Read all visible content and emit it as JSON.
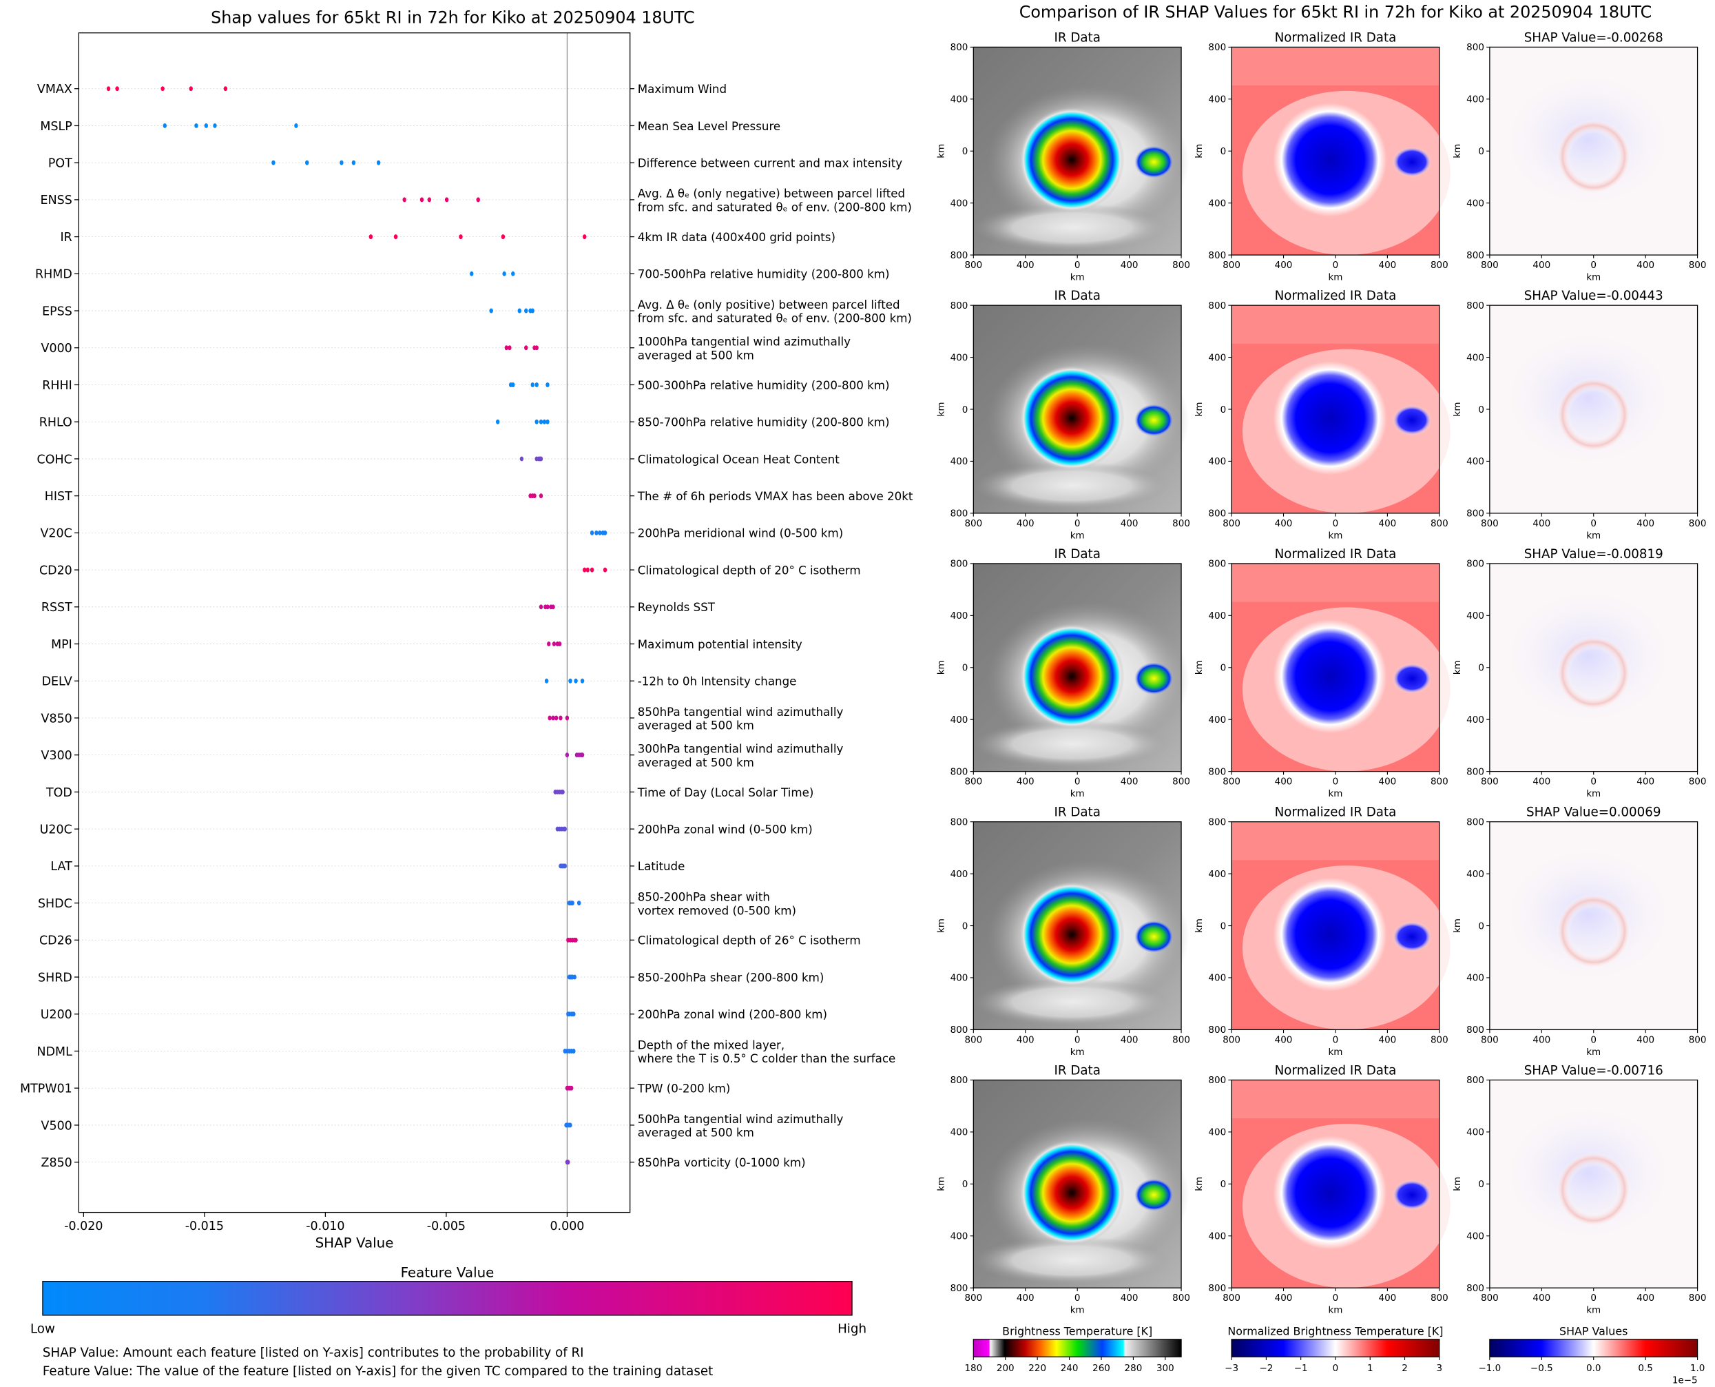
{
  "left": {
    "title": "Shap values for 65kt RI in 72h for Kiko at 20250904 18UTC",
    "chart_data": {
      "type": "scatter",
      "title": "Shap values for 65kt RI in 72h for Kiko at 20250904 18UTC",
      "xlabel": "SHAP Value",
      "xlim": [
        -0.0202,
        0.0026
      ],
      "xticks": [
        "-0.020",
        "-0.015",
        "-0.010",
        "-0.005",
        "0.000"
      ],
      "xtick_values": [
        -0.02,
        -0.015,
        -0.01,
        -0.005,
        0.0
      ],
      "grid": "dotted horizontal per feature",
      "features": [
        {
          "code": "VMAX",
          "desc": [
            "Maximum Wind"
          ],
          "fv": 1.0,
          "values": [
            -0.01897,
            -0.01861,
            -0.01673,
            -0.01556,
            -0.01413
          ]
        },
        {
          "code": "MSLP",
          "desc": [
            "Mean Sea Level Pressure"
          ],
          "fv": 0.0,
          "values": [
            -0.01664,
            -0.01534,
            -0.01493,
            -0.01457,
            -0.01121
          ]
        },
        {
          "code": "POT",
          "desc": [
            "Difference between current and max intensity"
          ],
          "fv": 0.03,
          "values": [
            -0.01215,
            -0.01076,
            -0.00933,
            -0.00883,
            -0.0078
          ]
        },
        {
          "code": "ENSS",
          "desc": [
            "Avg. Δ θₑ (only negative) between parcel lifted",
            "from sfc. and saturated θₑ of env. (200-800 km)"
          ],
          "fv": 0.88,
          "values": [
            -0.00673,
            -0.00601,
            -0.0057,
            -0.00498,
            -0.00368
          ]
        },
        {
          "code": "IR",
          "desc": [
            "4km IR data (400x400 grid points)"
          ],
          "fv": 0.97,
          "values": [
            -0.00812,
            -0.00709,
            -0.0044,
            -0.00265,
            0.00072
          ]
        },
        {
          "code": "RHMD",
          "desc": [
            "700-500hPa relative humidity (200-800 km)"
          ],
          "fv": 0.03,
          "values": [
            -0.00395,
            -0.0026,
            -0.00224
          ]
        },
        {
          "code": "EPSS",
          "desc": [
            "Avg. Δ θₑ (only positive) between parcel lifted",
            "from sfc. and saturated θₑ of env. (200-800 km)"
          ],
          "fv": 0.03,
          "values": [
            -0.00314,
            -0.00197,
            -0.0017,
            -0.00152,
            -0.00143
          ]
        },
        {
          "code": "V000",
          "desc": [
            "1000hPa tangential wind azimuthally",
            "averaged at 500 km"
          ],
          "fv": 0.82,
          "values": [
            -0.00251,
            -0.00238,
            -0.0017,
            -0.00135,
            -0.00126
          ]
        },
        {
          "code": "RHHI",
          "desc": [
            "500-300hPa relative humidity (200-800 km)"
          ],
          "fv": 0.03,
          "values": [
            -0.00233,
            -0.00224,
            -0.00143,
            -0.00126,
            -0.00081
          ]
        },
        {
          "code": "RHLO",
          "desc": [
            "850-700hPa relative humidity (200-800 km)"
          ],
          "fv": 0.03,
          "values": [
            -0.00287,
            -0.00126,
            -0.00108,
            -0.00094,
            -0.00081
          ]
        },
        {
          "code": "COHC",
          "desc": [
            "Climatological Ocean Heat Content"
          ],
          "fv": 0.42,
          "values": [
            -0.00188,
            -0.00126,
            -0.00117,
            -0.00112,
            -0.00108
          ]
        },
        {
          "code": "HIST",
          "desc": [
            "The # of 6h periods VMAX has been above 20kt"
          ],
          "fv": 0.78,
          "values": [
            -0.00152,
            -0.00143,
            -0.00135,
            -0.00108
          ]
        },
        {
          "code": "V20C",
          "desc": [
            "200hPa meridional wind (0-500 km)"
          ],
          "fv": 0.12,
          "values": [
            0.00103,
            0.00121,
            0.00135,
            0.00148,
            0.00157
          ]
        },
        {
          "code": "CD20",
          "desc": [
            "Climatological depth of 20° C isotherm"
          ],
          "fv": 0.95,
          "values": [
            0.00072,
            0.00085,
            0.00103,
            0.00157
          ]
        },
        {
          "code": "RSST",
          "desc": [
            "Reynolds SST"
          ],
          "fv": 0.7,
          "values": [
            -0.00108,
            -0.0009,
            -0.00081,
            -0.00067,
            -0.00058
          ]
        },
        {
          "code": "MPI",
          "desc": [
            "Maximum potential intensity"
          ],
          "fv": 0.72,
          "values": [
            -0.00076,
            -0.00054,
            -0.0004,
            -0.00031
          ]
        },
        {
          "code": "DELV",
          "desc": [
            "-12h to 0h Intensity change"
          ],
          "fv": 0.03,
          "values": [
            -0.00085,
            0.00013,
            0.00036,
            0.00063
          ]
        },
        {
          "code": "V850",
          "desc": [
            "850hPa tangential wind azimuthally",
            "averaged at 500 km"
          ],
          "fv": 0.72,
          "values": [
            -0.00072,
            -0.00058,
            -0.00045,
            -0.00027,
            0.0
          ]
        },
        {
          "code": "V300",
          "desc": [
            "300hPa tangential wind azimuthally",
            "averaged at 500 km"
          ],
          "fv": 0.6,
          "values": [
            0.0,
            0.0004,
            0.00049,
            0.00058,
            0.00063
          ]
        },
        {
          "code": "TOD",
          "desc": [
            "Time of Day (Local Solar Time)"
          ],
          "fv": 0.42,
          "values": [
            -0.00049,
            -0.0004,
            -0.00031,
            -0.00022,
            -0.00018
          ]
        },
        {
          "code": "U20C",
          "desc": [
            "200hPa zonal wind (0-500 km)"
          ],
          "fv": 0.38,
          "values": [
            -0.0004,
            -0.00031,
            -0.00022,
            -0.00013,
            -9e-05
          ]
        },
        {
          "code": "LAT",
          "desc": [
            "Latitude"
          ],
          "fv": 0.3,
          "values": [
            -0.00027,
            -0.00022,
            -0.00018,
            -0.00013,
            -9e-05
          ]
        },
        {
          "code": "SHDC",
          "desc": [
            "850-200hPa shear with",
            "vortex removed (0-500 km)"
          ],
          "fv": 0.2,
          "values": [
            9e-05,
            0.00013,
            0.00018,
            0.00022,
            0.00049
          ]
        },
        {
          "code": "CD26",
          "desc": [
            "Climatological depth of 26° C isotherm"
          ],
          "fv": 0.78,
          "values": [
            4e-05,
            0.00013,
            0.00022,
            0.00031,
            0.00036
          ]
        },
        {
          "code": "SHRD",
          "desc": [
            "850-200hPa shear (200-800 km)"
          ],
          "fv": 0.2,
          "values": [
            9e-05,
            0.00013,
            0.00018,
            0.00022,
            0.00031
          ]
        },
        {
          "code": "U200",
          "desc": [
            "200hPa zonal wind (200-800 km)"
          ],
          "fv": 0.2,
          "values": [
            4e-05,
            9e-05,
            0.00018,
            0.00022,
            0.00027
          ]
        },
        {
          "code": "NDML",
          "desc": [
            "Depth of the mixed layer,",
            "where the T is 0.5° C colder than the surface"
          ],
          "fv": 0.2,
          "values": [
            -9e-05,
            0.0,
            9e-05,
            0.00018,
            0.00027
          ]
        },
        {
          "code": "MTPW01",
          "desc": [
            "TPW (0-200 km)"
          ],
          "fv": 0.72,
          "values": [
            0.0,
            4e-05,
            9e-05,
            0.00013,
            0.00018
          ]
        },
        {
          "code": "V500",
          "desc": [
            "500hPa tangential wind azimuthally",
            "averaged at 500 km"
          ],
          "fv": 0.2,
          "values": [
            -4e-05,
            0.0,
            4e-05,
            9e-05,
            0.00013
          ]
        },
        {
          "code": "Z850",
          "desc": [
            "850hPa vorticity (0-1000 km)"
          ],
          "fv": 0.45,
          "values": [
            0.0,
            4e-05
          ]
        }
      ]
    },
    "colorbar": {
      "title": "Feature Value",
      "low": "Low",
      "high": "High",
      "colors": [
        "#008afb",
        "#1d7af2",
        "#7d40c9",
        "#c50a9f",
        "#ff0052"
      ]
    },
    "notes": [
      "SHAP Value: Amount each feature [listed on Y-axis] contributes to the probability of RI",
      "Feature Value: The value of the feature [listed on Y-axis] for the given TC compared to the training dataset"
    ]
  },
  "right": {
    "title": "Comparison of IR SHAP Values for 65kt RI in 72h for Kiko at 20250904 18UTC",
    "col_titles": [
      "IR Data",
      "Normalized IR Data"
    ],
    "rows": [
      {
        "shap_title": "SHAP Value=-0.00268"
      },
      {
        "shap_title": "SHAP Value=-0.00443"
      },
      {
        "shap_title": "SHAP Value=-0.00819"
      },
      {
        "shap_title": "SHAP Value=0.00069"
      },
      {
        "shap_title": "SHAP Value=-0.00716"
      }
    ],
    "axis_ticks": [
      "800",
      "400",
      "0",
      "400",
      "800"
    ],
    "axis_label": "km",
    "colorbars": [
      {
        "title": "Brightness Temperature [K]",
        "ticks": [
          "180",
          "200",
          "220",
          "240",
          "260",
          "280",
          "300"
        ]
      },
      {
        "title": "Normalized Brightness Temperature [K]",
        "ticks": [
          "−3",
          "−2",
          "−1",
          "0",
          "1",
          "2",
          "3"
        ]
      },
      {
        "title": "SHAP Values",
        "ticks": [
          "−1.0",
          "−0.5",
          "0.0",
          "0.5",
          "1.0"
        ],
        "offset": "1e−5"
      }
    ]
  }
}
